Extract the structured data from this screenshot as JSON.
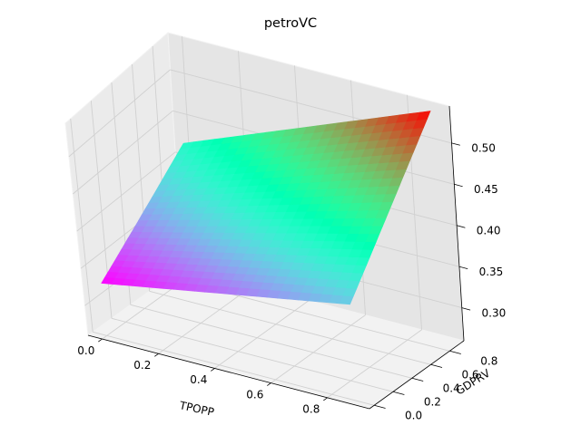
{
  "chart_data": {
    "type": "surface3d",
    "title": "petroVC",
    "xlabel": "TPOPP",
    "ylabel": "GDPRV",
    "zlabel": "",
    "xlim": [
      -0.05,
      0.95
    ],
    "ylim": [
      -0.05,
      0.95
    ],
    "zlim": [
      0.26,
      0.545
    ],
    "x_ticks": [
      "0.0",
      "0.2",
      "0.4",
      "0.6",
      "0.8"
    ],
    "x_tick_values": [
      0.0,
      0.2,
      0.4,
      0.6,
      0.8
    ],
    "y_ticks": [
      "0.0",
      "0.2",
      "0.4",
      "0.6",
      "0.8"
    ],
    "y_tick_values": [
      0.0,
      0.2,
      0.4,
      0.6,
      0.8
    ],
    "z_ticks": [
      "0.30",
      "0.35",
      "0.40",
      "0.45",
      "0.50"
    ],
    "z_tick_values": [
      0.3,
      0.35,
      0.4,
      0.45,
      0.5
    ],
    "colormap": "rainbow",
    "grid": true,
    "x_range": [
      0.0,
      0.9
    ],
    "y_range": [
      0.0,
      0.9
    ],
    "corner_values": [
      {
        "x": 0.0,
        "y": 0.0,
        "z": 0.33
      },
      {
        "x": 0.9,
        "y": 0.0,
        "z": 0.39
      },
      {
        "x": 0.0,
        "y": 0.9,
        "z": 0.42
      },
      {
        "x": 0.9,
        "y": 0.9,
        "z": 0.54
      }
    ]
  }
}
